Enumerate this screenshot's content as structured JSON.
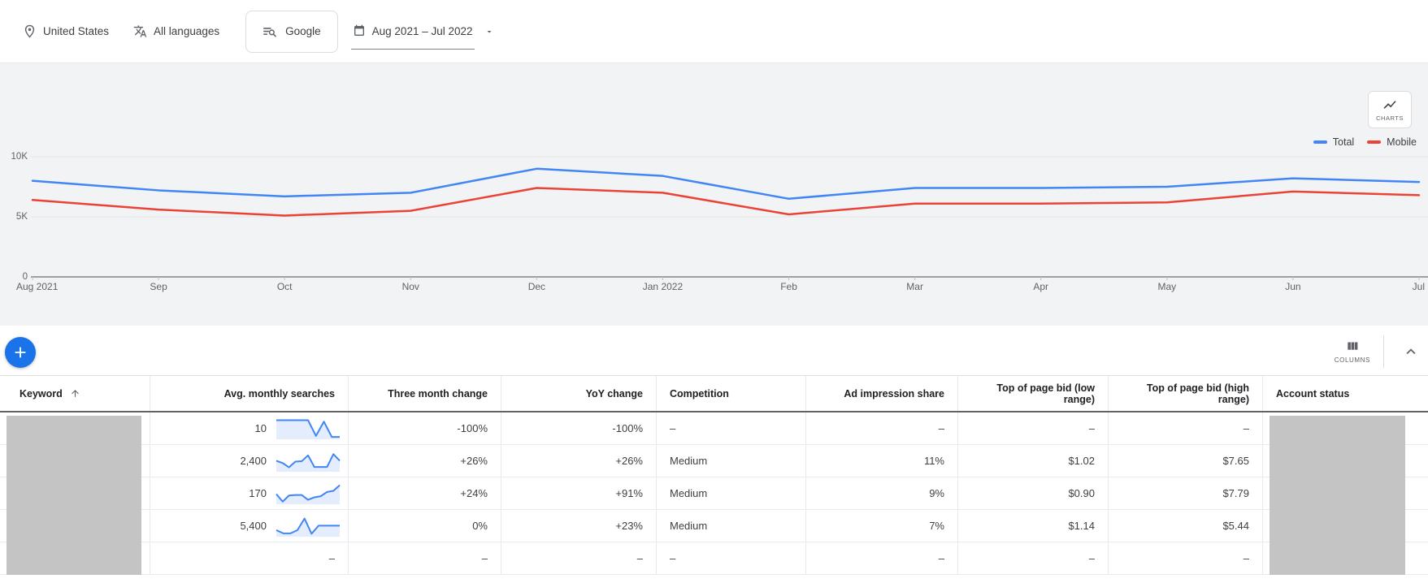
{
  "topbar": {
    "location": "United States",
    "languages": "All languages",
    "network": "Google",
    "date_range": "Aug 2021 – Jul 2022"
  },
  "chart_section": {
    "charts_button": "CHARTS",
    "legend": [
      {
        "name": "Total",
        "color": "#4285f4"
      },
      {
        "name": "Mobile",
        "color": "#ea4335"
      }
    ]
  },
  "chart_data": {
    "type": "line",
    "x": [
      "Aug 2021",
      "Sep",
      "Oct",
      "Nov",
      "Dec",
      "Jan 2022",
      "Feb",
      "Mar",
      "Apr",
      "May",
      "Jun",
      "Jul"
    ],
    "series": [
      {
        "name": "Total",
        "color": "#4285f4",
        "values": [
          8000,
          7200,
          6700,
          7000,
          9000,
          8400,
          6500,
          7400,
          7400,
          7500,
          8200,
          7900
        ]
      },
      {
        "name": "Mobile",
        "color": "#ea4335",
        "values": [
          6400,
          5600,
          5100,
          5500,
          7400,
          7000,
          5200,
          6100,
          6100,
          6200,
          7100,
          6800
        ]
      }
    ],
    "ylim": [
      0,
      10000
    ],
    "yticks": [
      {
        "v": 0,
        "label": "0"
      },
      {
        "v": 5000,
        "label": "5K"
      },
      {
        "v": 10000,
        "label": "10K"
      }
    ],
    "grid": true,
    "legend_position": "top-right"
  },
  "table": {
    "columns_button": "COLUMNS",
    "headers": [
      "Keyword",
      "Avg. monthly searches",
      "Three month change",
      "YoY change",
      "Competition",
      "Ad impression share",
      "Top of page bid (low range)",
      "Top of page bid (high range)",
      "Account status"
    ],
    "sort": {
      "column": "Keyword",
      "direction": "ascending"
    },
    "rows": [
      {
        "keyword": "",
        "keyword_redacted": true,
        "avg_monthly_searches": "10",
        "trend": [
          1,
          1,
          1,
          1,
          1,
          0.12,
          0.92,
          0.06,
          0.06
        ],
        "three_month_change": "-100%",
        "yoy_change": "-100%",
        "competition": "–",
        "ad_impression_share": "–",
        "top_of_page_bid_low": "–",
        "top_of_page_bid_high": "–",
        "account_status": "",
        "account_status_redacted": true
      },
      {
        "keyword": "",
        "keyword_redacted": true,
        "avg_monthly_searches": "2,400",
        "trend": [
          0.55,
          0.42,
          0.18,
          0.5,
          0.52,
          0.85,
          0.2,
          0.2,
          0.2,
          0.92,
          0.55
        ],
        "three_month_change": "+26%",
        "yoy_change": "+26%",
        "competition": "Medium",
        "ad_impression_share": "11%",
        "top_of_page_bid_low": "$1.02",
        "top_of_page_bid_high": "$7.65",
        "account_status": "",
        "account_status_redacted": true
      },
      {
        "keyword": "",
        "keyword_redacted": true,
        "avg_monthly_searches": "170",
        "trend": [
          0.5,
          0.08,
          0.42,
          0.45,
          0.45,
          0.18,
          0.32,
          0.38,
          0.62,
          0.68,
          1.0
        ],
        "three_month_change": "+24%",
        "yoy_change": "+91%",
        "competition": "Medium",
        "ad_impression_share": "9%",
        "top_of_page_bid_low": "$0.90",
        "top_of_page_bid_high": "$7.79",
        "account_status": "",
        "account_status_redacted": true
      },
      {
        "keyword": "",
        "keyword_redacted": true,
        "avg_monthly_searches": "5,400",
        "trend": [
          0.3,
          0.12,
          0.12,
          0.3,
          0.95,
          0.1,
          0.55,
          0.55,
          0.55,
          0.55
        ],
        "three_month_change": "0%",
        "yoy_change": "+23%",
        "competition": "Medium",
        "ad_impression_share": "7%",
        "top_of_page_bid_low": "$1.14",
        "top_of_page_bid_high": "$5.44",
        "account_status": "",
        "account_status_redacted": true
      },
      {
        "keyword": "",
        "keyword_redacted": true,
        "avg_monthly_searches": "–",
        "trend": null,
        "three_month_change": "–",
        "yoy_change": "–",
        "competition": "–",
        "ad_impression_share": "–",
        "top_of_page_bid_low": "–",
        "top_of_page_bid_high": "–",
        "account_status": "",
        "account_status_redacted": true
      }
    ]
  },
  "colors": {
    "accent_blue": "#1a73e8",
    "total_line": "#4285f4",
    "mobile_line": "#ea4335",
    "chart_background": "#f1f3f4",
    "redaction_gray": "#c4c4c4"
  }
}
